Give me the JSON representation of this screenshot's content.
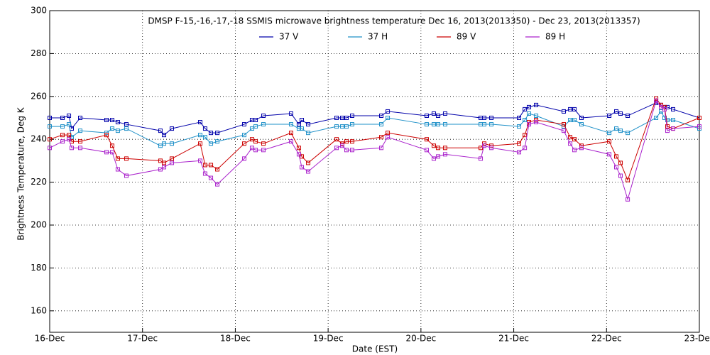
{
  "chart_data": {
    "type": "line",
    "title": "DMSP F-15,-16,-17,-18 SSMIS microwave brightness temperature Dec 16, 2013(2013350) - Dec 23, 2013(2013357)",
    "xlabel": "Date (EST)",
    "ylabel": "Brightness Temperature, Deg K",
    "x": [
      16.0,
      16.138,
      16.207,
      16.237,
      16.329,
      16.612,
      16.673,
      16.734,
      16.826,
      17.193,
      17.232,
      17.316,
      17.622,
      17.675,
      17.737,
      17.806,
      18.096,
      18.18,
      18.219,
      18.303,
      18.601,
      18.685,
      18.716,
      18.785,
      19.091,
      19.152,
      19.198,
      19.259,
      19.573,
      19.642,
      20.062,
      20.139,
      20.185,
      20.261,
      20.644,
      20.682,
      20.759,
      21.057,
      21.119,
      21.164,
      21.241,
      21.539,
      21.608,
      21.654,
      21.73,
      22.029,
      22.105,
      22.151,
      22.228,
      22.534,
      22.587,
      22.625,
      22.656,
      22.717,
      23.0
    ],
    "series": [
      {
        "name": "37 V",
        "color": "#0000aa",
        "values": [
          250,
          250,
          251,
          245,
          250,
          249,
          249,
          248,
          247,
          244,
          242,
          245,
          248,
          245,
          243,
          243,
          247,
          249,
          249,
          251,
          252,
          247,
          249,
          247,
          250,
          250,
          250,
          251,
          251,
          253,
          251,
          252,
          251,
          252,
          250,
          250,
          250,
          250,
          254,
          255,
          256,
          253,
          254,
          254,
          250,
          251,
          253,
          252,
          251,
          257,
          256,
          255,
          255,
          254,
          250
        ]
      },
      {
        "name": "37 H",
        "color": "#1e90c8",
        "values": [
          246,
          246,
          247,
          241,
          244,
          243,
          245,
          244,
          245,
          237,
          238,
          238,
          242,
          241,
          238,
          239,
          242,
          245,
          246,
          247,
          247,
          245,
          245,
          243,
          246,
          246,
          246,
          247,
          247,
          250,
          247,
          247,
          247,
          247,
          247,
          247,
          247,
          246,
          249,
          252,
          251,
          246,
          249,
          249,
          247,
          243,
          245,
          244,
          243,
          250,
          253,
          250,
          249,
          249,
          245
        ]
      },
      {
        "name": "89 V",
        "color": "#cc0000",
        "values": [
          240,
          242,
          242,
          239,
          239,
          242,
          237,
          231,
          231,
          230,
          229,
          231,
          238,
          228,
          228,
          226,
          238,
          240,
          239,
          238,
          243,
          236,
          232,
          229,
          240,
          238,
          239,
          239,
          241,
          243,
          240,
          237,
          236,
          236,
          236,
          238,
          237,
          238,
          242,
          248,
          249,
          247,
          241,
          240,
          237,
          239,
          232,
          229,
          221,
          259,
          256,
          255,
          246,
          245,
          250
        ]
      },
      {
        "name": "89 H",
        "color": "#aa22cc",
        "values": [
          236,
          239,
          240,
          236,
          236,
          234,
          234,
          226,
          223,
          226,
          227,
          229,
          230,
          224,
          222,
          219,
          231,
          236,
          235,
          235,
          239,
          233,
          227,
          225,
          236,
          237,
          235,
          235,
          236,
          241,
          235,
          231,
          232,
          233,
          231,
          237,
          236,
          234,
          236,
          247,
          248,
          244,
          238,
          235,
          236,
          233,
          227,
          223,
          212,
          258,
          255,
          254,
          244,
          245,
          246
        ]
      }
    ],
    "xlim": [
      16,
      23
    ],
    "xticks": [
      {
        "value": 16,
        "label": "16-Dec"
      },
      {
        "value": 17,
        "label": "17-Dec"
      },
      {
        "value": 18,
        "label": "18-Dec"
      },
      {
        "value": 19,
        "label": "19-Dec"
      },
      {
        "value": 20,
        "label": "20-Dec"
      },
      {
        "value": 21,
        "label": "21-Dec"
      },
      {
        "value": 22,
        "label": "22-Dec"
      },
      {
        "value": 23,
        "label": "23-Dec"
      }
    ],
    "ylim": [
      150,
      300
    ],
    "yticks": [
      160,
      180,
      200,
      220,
      240,
      260,
      280,
      300
    ],
    "grid": true
  }
}
